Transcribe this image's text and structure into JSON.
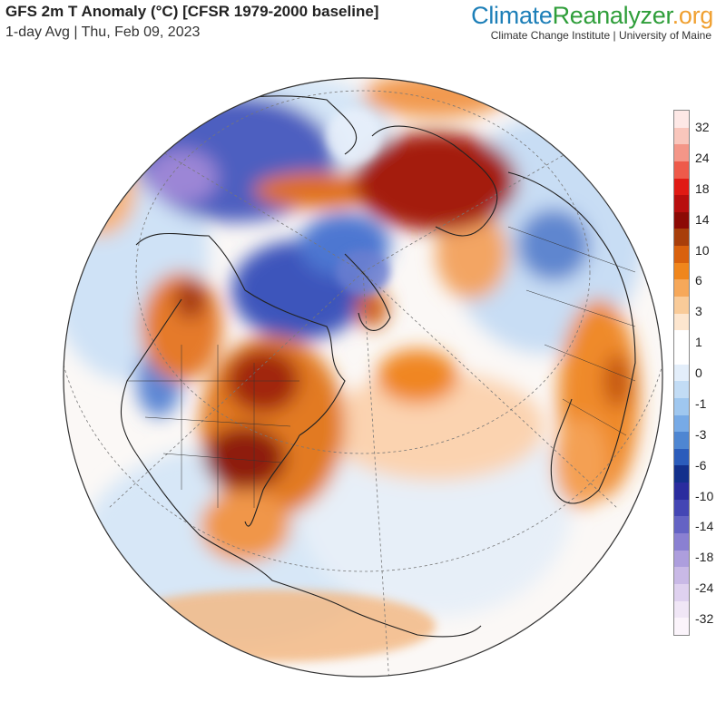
{
  "header": {
    "title": "GFS 2m T Anomaly (°C) [CFSR 1979-2000 baseline]",
    "subtitle": "1-day Avg | Thu, Feb 09, 2023"
  },
  "brand": {
    "part1": "Climate",
    "part2": "Reanalyzer",
    "part3": ".org",
    "affiliation": "Climate Change Institute | University of Maine",
    "colors": {
      "climate": "#1d7fb8",
      "reanalyzer": "#2f9e3a",
      "org": "#f0a030"
    }
  },
  "legend": {
    "labels": [
      "32",
      "24",
      "18",
      "14",
      "10",
      "6",
      "3",
      "1",
      "0",
      "-1",
      "-3",
      "-6",
      "-10",
      "-14",
      "-18",
      "-24",
      "-32"
    ],
    "colors": [
      "#fde8e6",
      "#f9c6bc",
      "#f49688",
      "#ee5a4a",
      "#e01a14",
      "#b80e0e",
      "#8c0a05",
      "#a83e0a",
      "#d9610d",
      "#f0861c",
      "#f6a85a",
      "#f9cb99",
      "#fde6cf",
      "#ffffff",
      "#ffffff",
      "#e3eefa",
      "#c2dcf5",
      "#9fc7ef",
      "#77aae6",
      "#4e86d2",
      "#2b5cbb",
      "#13308c",
      "#2a2c9e",
      "#4446b4",
      "#6463c4",
      "#8a80d2",
      "#ad9edd",
      "#c9b9e6",
      "#dfd1ef",
      "#f0e6f6",
      "#fbf4fb"
    ]
  }
}
